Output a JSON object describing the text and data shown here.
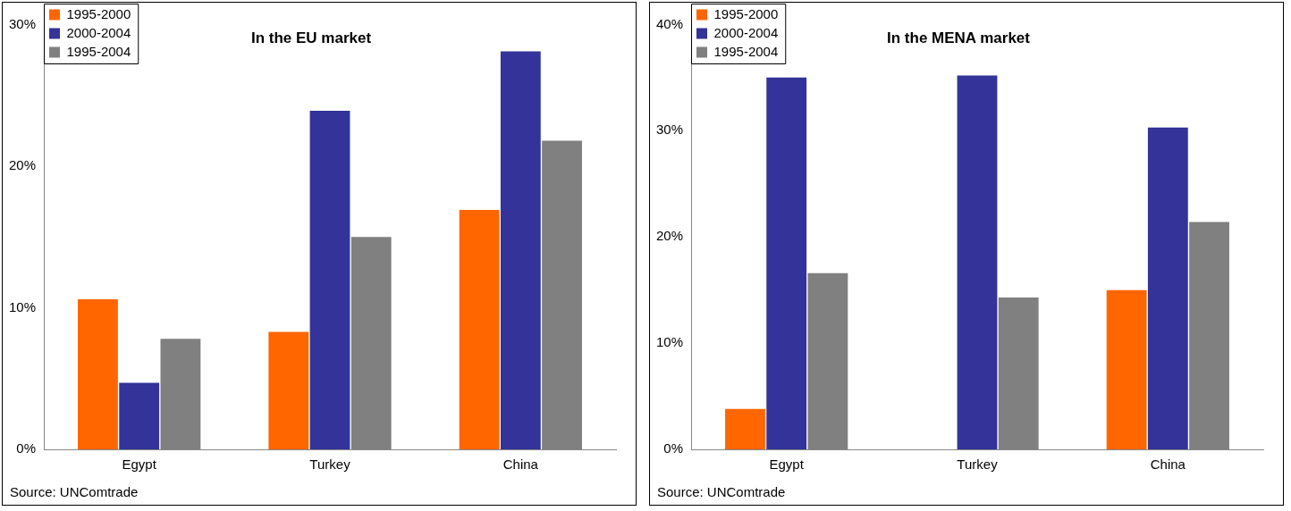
{
  "chart_data": [
    {
      "type": "bar",
      "title": "In the EU market",
      "categories": [
        "Egypt",
        "Turkey",
        "China"
      ],
      "series": [
        {
          "name": "1995-2000",
          "color": "#ff6600",
          "values": [
            10.6,
            8.3,
            16.9
          ]
        },
        {
          "name": "2000-2004",
          "color": "#333399",
          "values": [
            4.7,
            23.9,
            28.1
          ]
        },
        {
          "name": "1995-2004",
          "color": "#808080",
          "values": [
            7.8,
            15.0,
            21.8
          ]
        }
      ],
      "ylim": [
        0,
        30
      ],
      "yticks": [
        {
          "value": 0,
          "label": "0%"
        },
        {
          "value": 10,
          "label": "10%"
        },
        {
          "value": 20,
          "label": "20%"
        },
        {
          "value": 30,
          "label": "30%"
        }
      ],
      "grid": false,
      "legend": "top left",
      "annotations": [
        "Source: UNComtrade"
      ]
    },
    {
      "type": "bar",
      "title": "In the MENA market",
      "categories": [
        "Egypt",
        "Turkey",
        "China"
      ],
      "series": [
        {
          "name": "1995-2000",
          "color": "#ff6600",
          "values": [
            3.8,
            0,
            15.0
          ]
        },
        {
          "name": "2000-2004",
          "color": "#333399",
          "values": [
            35.0,
            35.2,
            30.3
          ]
        },
        {
          "name": "1995-2004",
          "color": "#808080",
          "values": [
            16.6,
            14.3,
            21.4
          ]
        }
      ],
      "ylim": [
        0,
        40
      ],
      "yticks": [
        {
          "value": 0,
          "label": "0%"
        },
        {
          "value": 10,
          "label": "10%"
        },
        {
          "value": 20,
          "label": "20%"
        },
        {
          "value": 30,
          "label": "30%"
        },
        {
          "value": 40,
          "label": "40%"
        }
      ],
      "grid": false,
      "legend": "top left",
      "annotations": [
        "Source: UNComtrade"
      ]
    }
  ]
}
